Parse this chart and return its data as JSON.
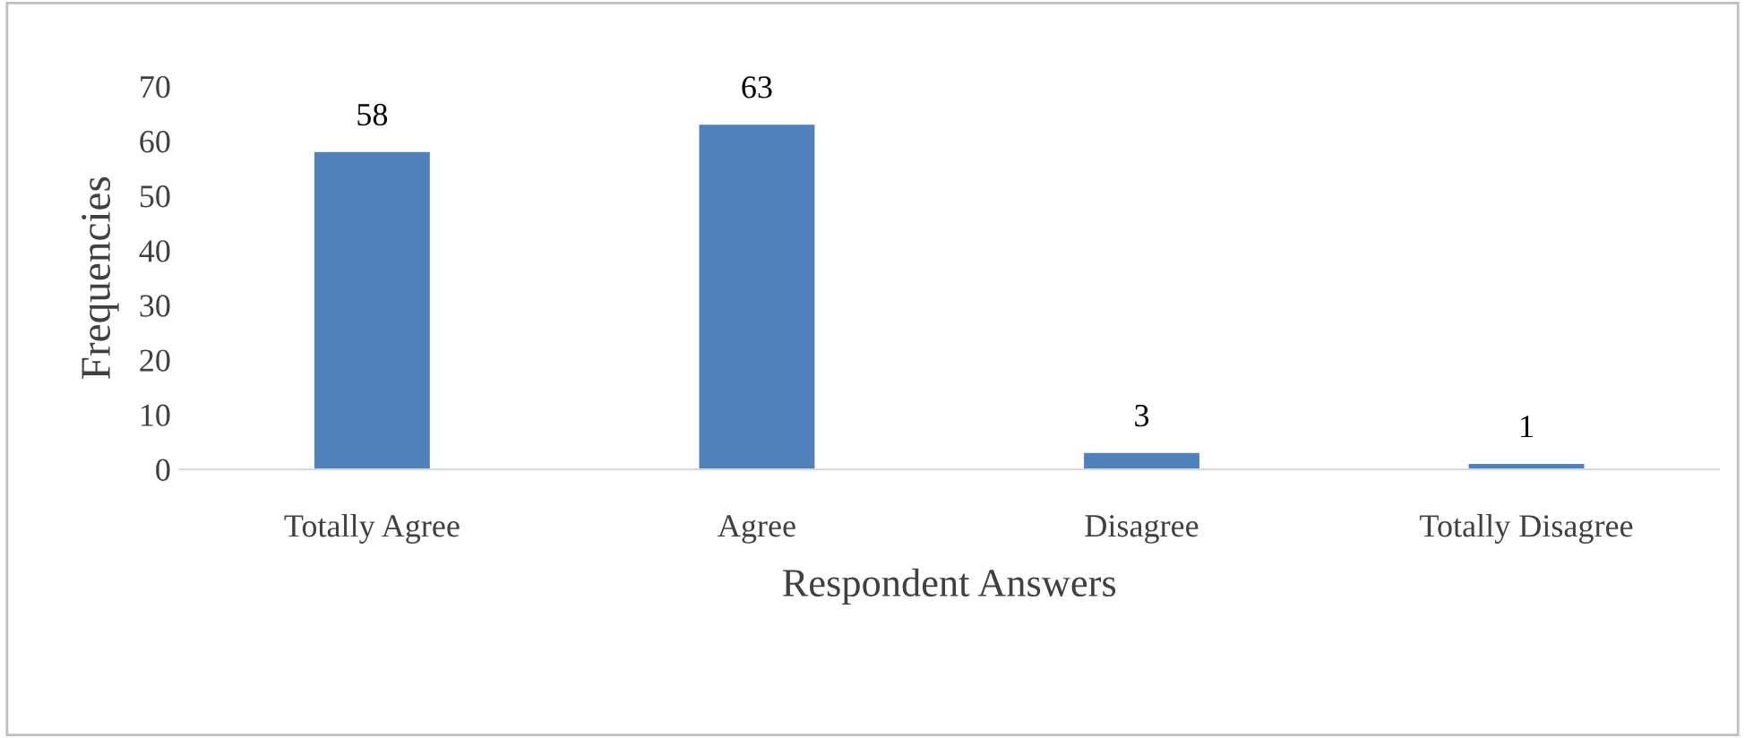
{
  "chart_data": {
    "type": "bar",
    "xlabel": "Respondent Answers",
    "ylabel": "Frequencies",
    "categories": [
      "Totally Agree",
      "Agree",
      "Disagree",
      "Totally Disagree"
    ],
    "values": [
      58,
      63,
      3,
      1
    ],
    "color": "#4f81bd",
    "ylim": [
      0,
      70
    ],
    "yticks": [
      0,
      10,
      20,
      30,
      40,
      50,
      60,
      70
    ],
    "data_labels": true,
    "grid": false,
    "legend": false
  }
}
